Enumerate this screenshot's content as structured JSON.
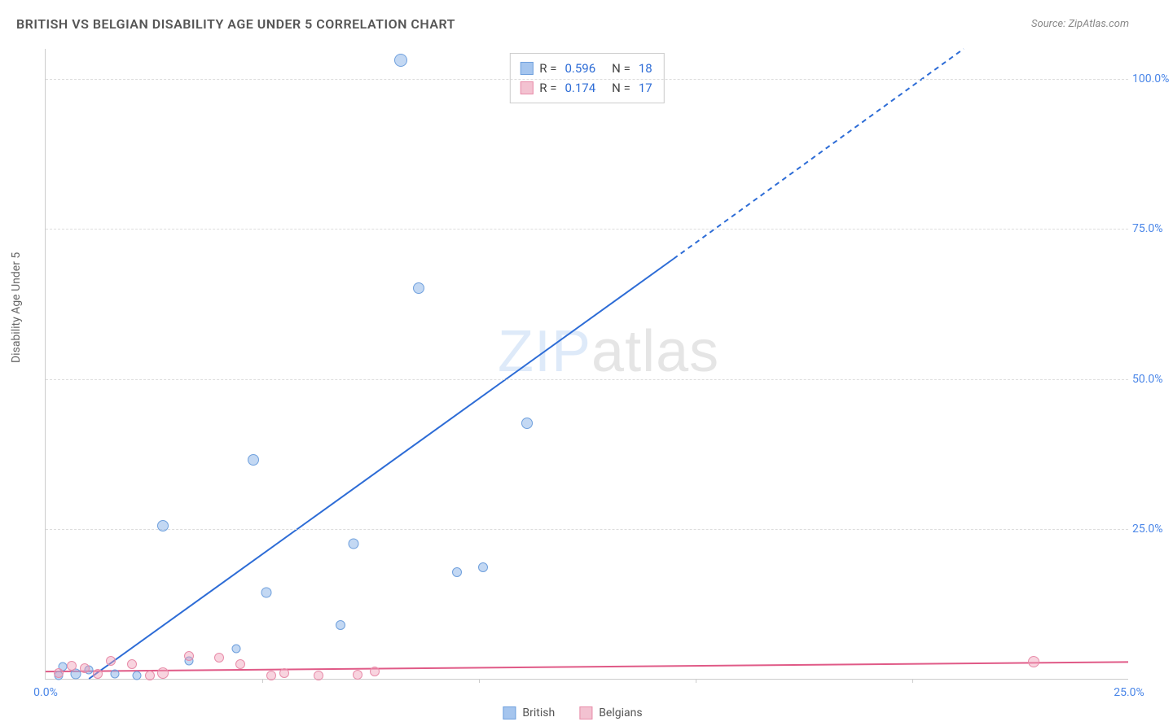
{
  "header": {
    "title": "BRITISH VS BELGIAN DISABILITY AGE UNDER 5 CORRELATION CHART",
    "source_prefix": "Source: ",
    "source_name": "ZipAtlas.com"
  },
  "chart": {
    "type": "scatter",
    "ylabel": "Disability Age Under 5",
    "watermark_a": "ZIP",
    "watermark_b": "atlas",
    "xlim": [
      0,
      25
    ],
    "ylim": [
      0,
      105
    ],
    "xticks": [
      {
        "v": 0,
        "label": "0.0%"
      },
      {
        "v": 25,
        "label": "25.0%"
      }
    ],
    "xtick_marks": [
      5,
      10,
      15,
      20
    ],
    "yticks": [
      {
        "v": 25,
        "label": "25.0%"
      },
      {
        "v": 50,
        "label": "50.0%"
      },
      {
        "v": 75,
        "label": "75.0%"
      },
      {
        "v": 100,
        "label": "100.0%"
      }
    ],
    "grid_color": "#dddddd",
    "background_color": "#ffffff",
    "marker_size": 14,
    "legend_top": {
      "rows": [
        {
          "swatch_color": "#a5c5ee",
          "swatch_border": "#6fa0dd",
          "r_label": "R =",
          "r": "0.596",
          "n_label": "N =",
          "n": "18"
        },
        {
          "swatch_color": "#f3c2d1",
          "swatch_border": "#e88ca9",
          "r_label": "R =",
          "r": "0.174",
          "n_label": "N =",
          "n": "17"
        }
      ]
    },
    "legend_bottom": {
      "items": [
        {
          "swatch_color": "#a5c5ee",
          "swatch_border": "#6fa0dd",
          "label": "British"
        },
        {
          "swatch_color": "#f3c2d1",
          "swatch_border": "#e88ca9",
          "label": "Belgians"
        }
      ]
    },
    "series": [
      {
        "name": "British",
        "color_class": "pt-blue",
        "trend": {
          "x1": 1.0,
          "y1": 0,
          "x2_solid": 14.5,
          "y2_solid": 70,
          "x2_dash": 21.2,
          "y2_dash": 105,
          "stroke": "#2d6cd6",
          "width": 2
        },
        "points": [
          {
            "x": 8.2,
            "y": 103,
            "r": 16
          },
          {
            "x": 8.6,
            "y": 65,
            "r": 14
          },
          {
            "x": 11.1,
            "y": 42.5,
            "r": 14
          },
          {
            "x": 4.8,
            "y": 36.5,
            "r": 14
          },
          {
            "x": 2.7,
            "y": 25.5,
            "r": 14
          },
          {
            "x": 7.1,
            "y": 22.5,
            "r": 13
          },
          {
            "x": 9.5,
            "y": 17.7,
            "r": 12
          },
          {
            "x": 10.1,
            "y": 18.5,
            "r": 12
          },
          {
            "x": 5.1,
            "y": 14.3,
            "r": 13
          },
          {
            "x": 6.8,
            "y": 9.0,
            "r": 12
          },
          {
            "x": 4.4,
            "y": 5.0,
            "r": 11
          },
          {
            "x": 3.3,
            "y": 3.0,
            "r": 11
          },
          {
            "x": 1.0,
            "y": 1.5,
            "r": 11
          },
          {
            "x": 0.7,
            "y": 0.8,
            "r": 13
          },
          {
            "x": 0.4,
            "y": 2.0,
            "r": 11
          },
          {
            "x": 0.3,
            "y": 0.5,
            "r": 11
          },
          {
            "x": 1.6,
            "y": 0.8,
            "r": 11
          },
          {
            "x": 2.1,
            "y": 0.6,
            "r": 11
          }
        ]
      },
      {
        "name": "Belgians",
        "color_class": "pt-pink",
        "trend": {
          "x1": 0,
          "y1": 1.2,
          "x2_solid": 25,
          "y2_solid": 2.8,
          "x2_dash": 25,
          "y2_dash": 2.8,
          "stroke": "#e05a87",
          "width": 2
        },
        "points": [
          {
            "x": 22.8,
            "y": 2.8,
            "r": 14
          },
          {
            "x": 7.6,
            "y": 1.2,
            "r": 12
          },
          {
            "x": 7.2,
            "y": 0.7,
            "r": 12
          },
          {
            "x": 6.3,
            "y": 0.6,
            "r": 12
          },
          {
            "x": 5.5,
            "y": 1.0,
            "r": 12
          },
          {
            "x": 5.2,
            "y": 0.5,
            "r": 12
          },
          {
            "x": 4.5,
            "y": 2.5,
            "r": 12
          },
          {
            "x": 4.0,
            "y": 3.5,
            "r": 12
          },
          {
            "x": 3.3,
            "y": 3.8,
            "r": 12
          },
          {
            "x": 2.7,
            "y": 1.0,
            "r": 14
          },
          {
            "x": 2.4,
            "y": 0.5,
            "r": 12
          },
          {
            "x": 2.0,
            "y": 2.5,
            "r": 12
          },
          {
            "x": 1.5,
            "y": 3.0,
            "r": 12
          },
          {
            "x": 1.2,
            "y": 0.8,
            "r": 12
          },
          {
            "x": 0.9,
            "y": 1.8,
            "r": 12
          },
          {
            "x": 0.6,
            "y": 2.2,
            "r": 12
          },
          {
            "x": 0.3,
            "y": 1.0,
            "r": 12
          }
        ]
      }
    ]
  }
}
